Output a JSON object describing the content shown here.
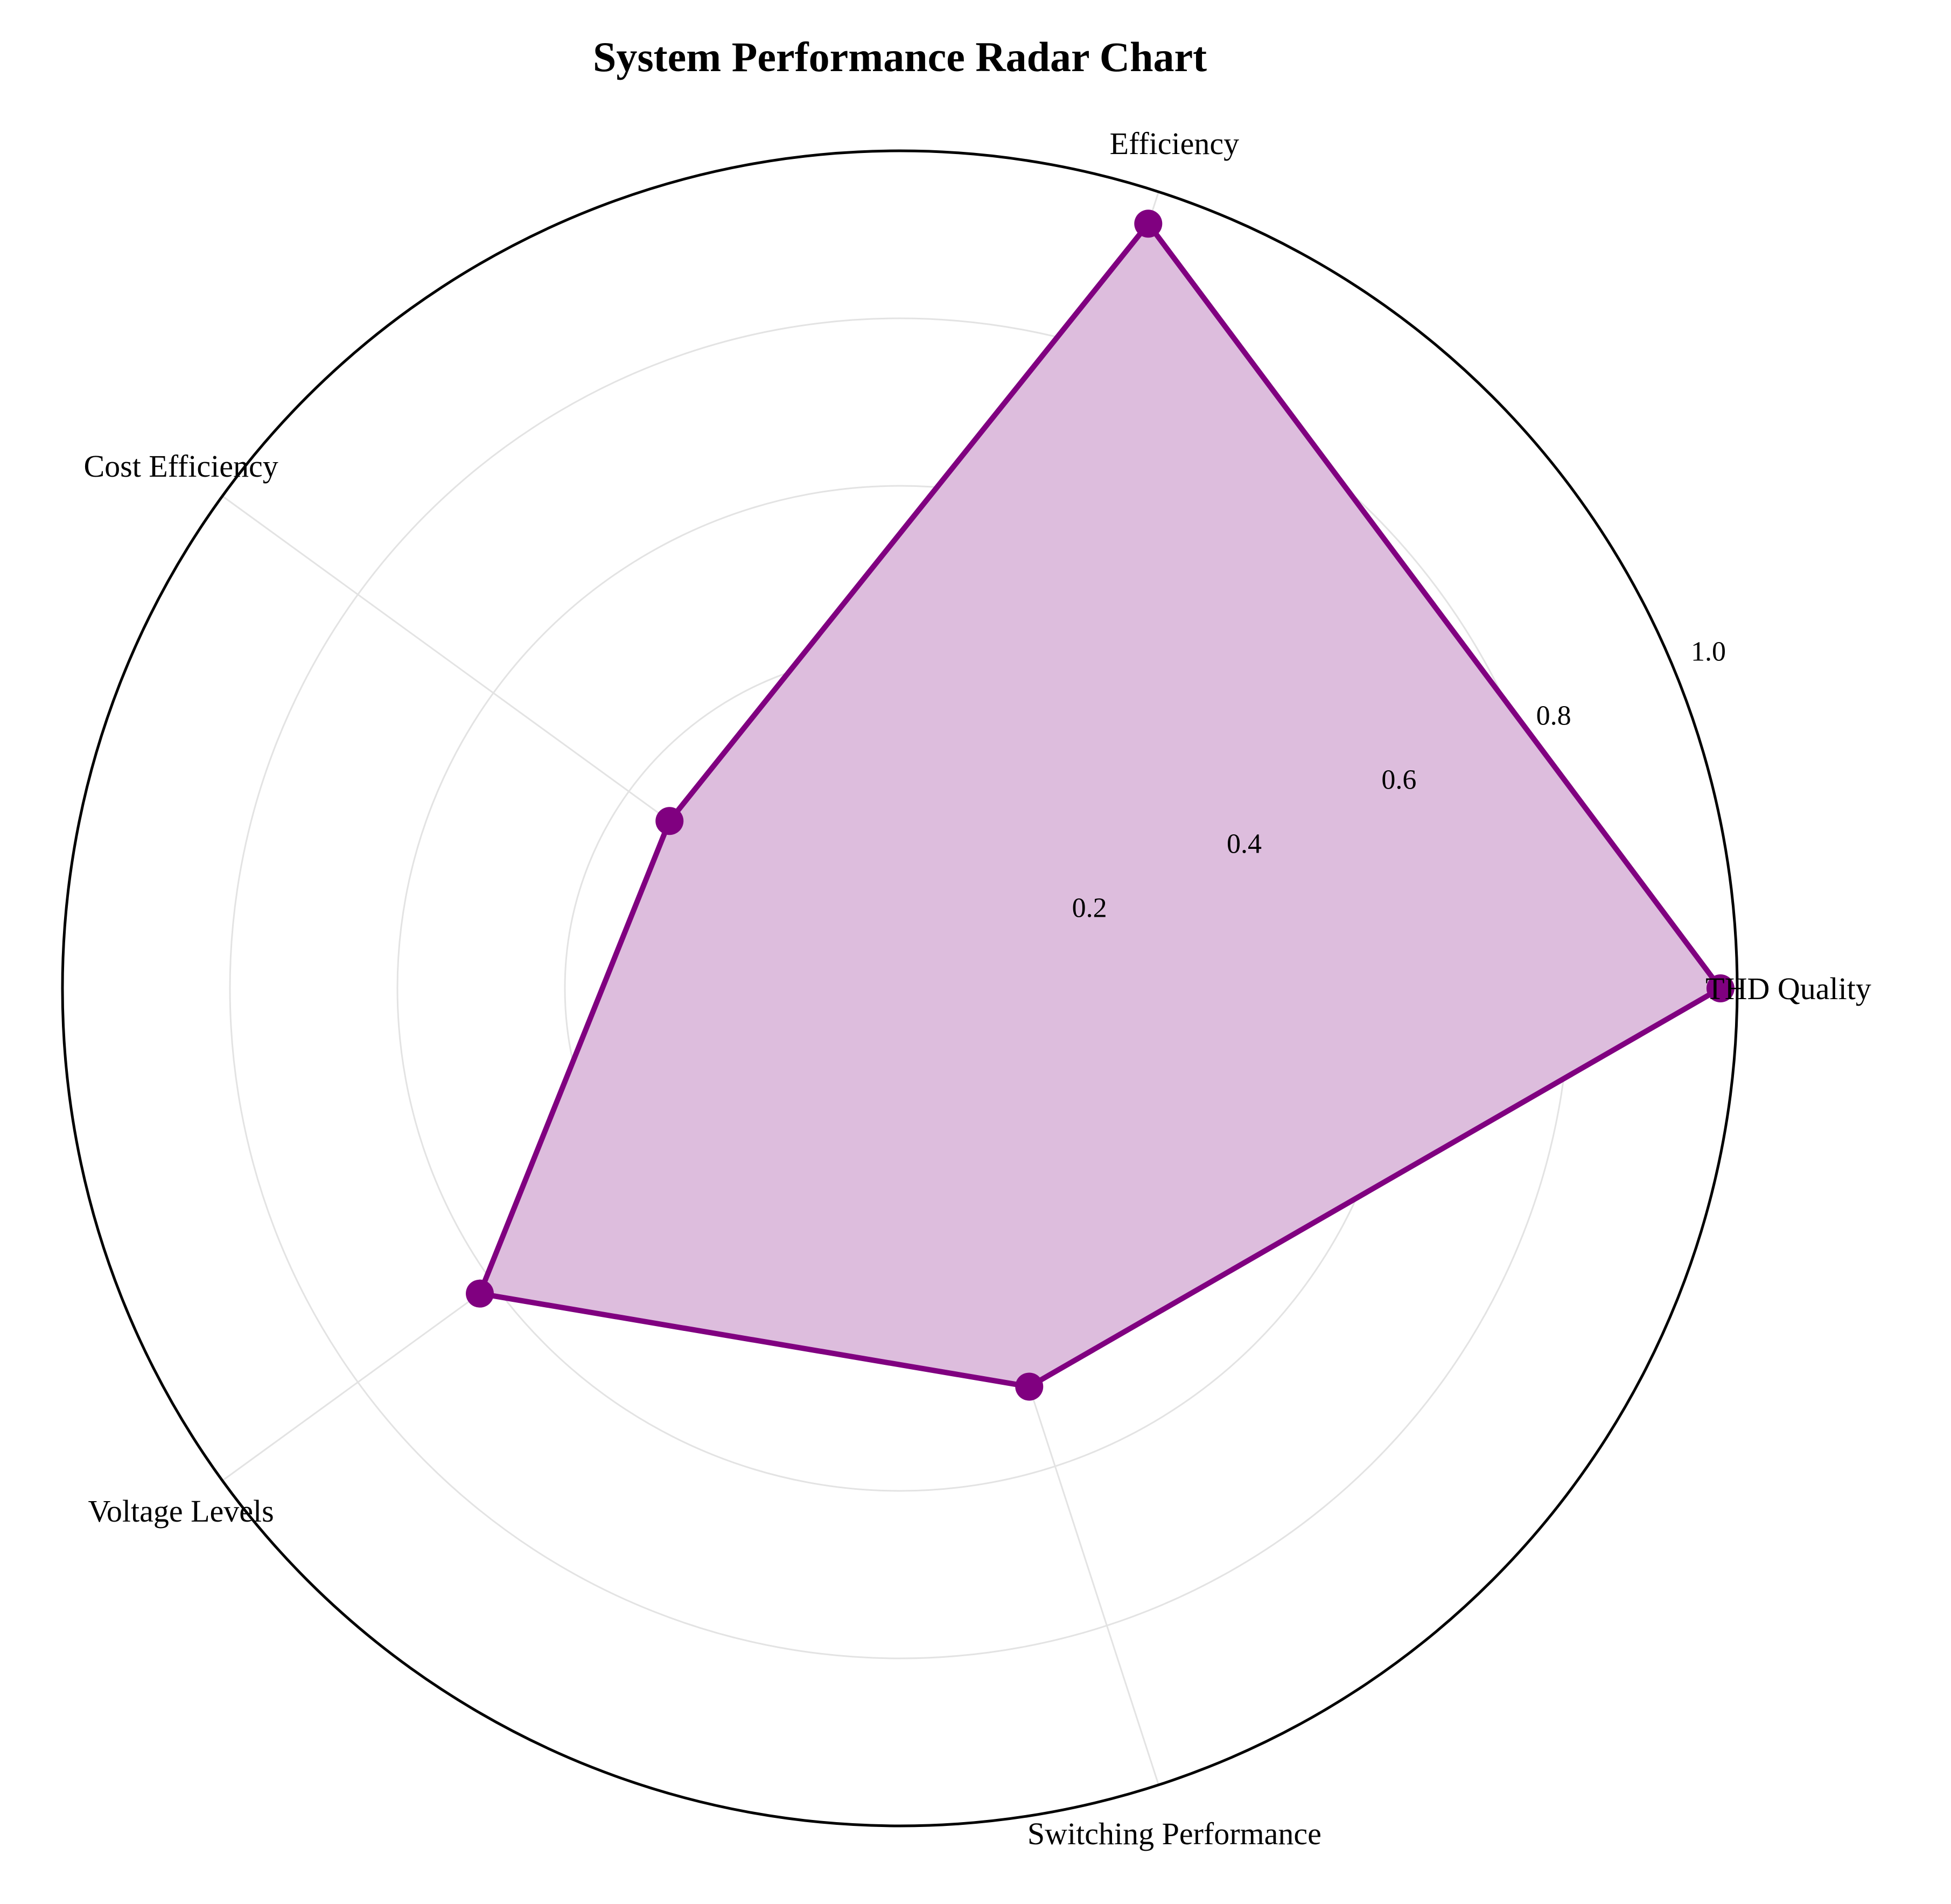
{
  "chart_data": {
    "type": "radar",
    "title": "System Performance Radar Chart",
    "categories": [
      "THD Quality",
      "Efficiency",
      "Cost Efficiency",
      "Voltage Levels",
      "Switching Performance"
    ],
    "series": [
      {
        "values": [
          0.98,
          0.96,
          0.34,
          0.62,
          0.5
        ]
      }
    ],
    "rlim": [
      0,
      1.0
    ],
    "rticks": [
      0.2,
      0.4,
      0.6,
      0.8,
      1.0
    ],
    "rtick_labels": [
      "0.2",
      "0.4",
      "0.6",
      "0.8",
      "1.0"
    ],
    "grid": true,
    "colors": {
      "line": "#800080",
      "fill": "#dcbcdc",
      "marker": "#800080"
    }
  }
}
